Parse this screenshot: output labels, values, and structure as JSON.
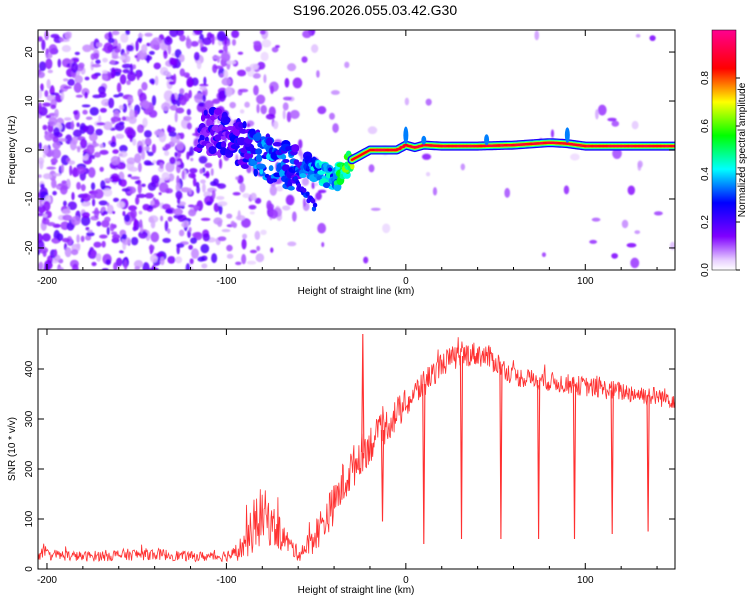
{
  "title": "S196.2026.055.03.42.G30",
  "chart_data": [
    {
      "type": "heatmap",
      "name": "spectrogram",
      "xlabel": "Height of straight line (km)",
      "ylabel": "Frequency (Hz)",
      "xlim": [
        -205,
        150
      ],
      "ylim": [
        -24.5,
        24.5
      ],
      "xticks": [
        -200,
        -100,
        0,
        100
      ],
      "yticks": [
        -20,
        -10,
        0,
        10,
        20
      ],
      "colorbar": {
        "label": "Normalized spectral amplitude",
        "ticks": [
          0.0,
          0.2,
          0.4,
          0.6,
          0.8
        ],
        "range": [
          0,
          1
        ],
        "colors": [
          "#ffffff",
          "#7f00ff",
          "#0000ff",
          "#00ffff",
          "#00ff00",
          "#ffff00",
          "#ff0000",
          "#ff0080"
        ]
      },
      "ridge": {
        "x": [
          -110,
          -100,
          -90,
          -80,
          -70,
          -60,
          -55,
          -50,
          -45,
          -40,
          -35,
          -30,
          -25,
          -20,
          -15,
          -10,
          -5,
          0,
          5,
          10,
          20,
          40,
          60,
          80,
          90,
          100,
          120,
          150
        ],
        "freq": [
          4,
          3,
          1,
          -1,
          -3,
          -4,
          -3,
          -4,
          -5,
          -6,
          -4,
          -2,
          -1,
          0,
          0,
          0,
          0,
          1,
          0.5,
          1,
          0.8,
          0.8,
          1.0,
          1.5,
          1.3,
          0.8,
          0.8,
          0.8
        ],
        "amp": [
          0.15,
          0.2,
          0.25,
          0.3,
          0.3,
          0.25,
          0.3,
          0.35,
          0.4,
          0.35,
          0.5,
          0.6,
          0.65,
          0.75,
          0.85,
          0.9,
          0.8,
          0.9,
          0.85,
          0.95,
          0.95,
          0.9,
          0.9,
          0.85,
          0.9,
          0.95,
          0.95,
          0.95
        ]
      }
    },
    {
      "type": "line",
      "name": "snr",
      "xlabel": "Height of straight line (km)",
      "ylabel": "SNR (10 * v/v)",
      "xlim": [
        -205,
        150
      ],
      "ylim": [
        0,
        480
      ],
      "xticks": [
        -200,
        -100,
        0,
        100
      ],
      "yticks": [
        0,
        100,
        200,
        300,
        400
      ],
      "color": "#ff3030",
      "envelope": {
        "x": [
          -205,
          -180,
          -160,
          -140,
          -120,
          -105,
          -95,
          -90,
          -85,
          -80,
          -75,
          -70,
          -65,
          -60,
          -55,
          -50,
          -45,
          -40,
          -35,
          -30,
          -25,
          -20,
          -15,
          -10,
          -5,
          0,
          5,
          10,
          15,
          20,
          25,
          30,
          35,
          40,
          45,
          50,
          55,
          60,
          70,
          80,
          90,
          100,
          110,
          120,
          130,
          140,
          150
        ],
        "y": [
          30,
          25,
          28,
          30,
          25,
          25,
          30,
          50,
          80,
          110,
          90,
          70,
          50,
          30,
          45,
          70,
          100,
          130,
          170,
          200,
          230,
          250,
          270,
          290,
          310,
          330,
          350,
          370,
          390,
          410,
          420,
          425,
          430,
          430,
          425,
          415,
          400,
          385,
          380,
          375,
          370,
          365,
          360,
          355,
          350,
          345,
          340
        ],
        "spread": [
          12,
          10,
          12,
          12,
          10,
          10,
          15,
          30,
          50,
          60,
          45,
          35,
          20,
          15,
          25,
          35,
          40,
          40,
          45,
          45,
          40,
          40,
          35,
          35,
          35,
          30,
          30,
          30,
          25,
          25,
          25,
          25,
          25,
          25,
          25,
          25,
          20,
          20,
          20,
          20,
          20,
          20,
          20,
          20,
          20,
          20,
          20
        ]
      },
      "dropouts": [
        {
          "x": -24,
          "y": 470
        },
        {
          "x": -13,
          "y": 95
        },
        {
          "x": 10,
          "y": 50
        },
        {
          "x": 31,
          "y": 60
        },
        {
          "x": 53,
          "y": 60
        },
        {
          "x": 74,
          "y": 60
        },
        {
          "x": 94,
          "y": 60
        },
        {
          "x": 115,
          "y": 70
        },
        {
          "x": 135,
          "y": 75
        }
      ]
    }
  ]
}
